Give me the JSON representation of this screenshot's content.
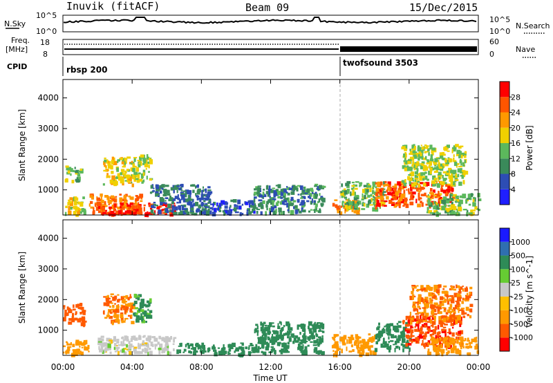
{
  "header": {
    "station": "Inuvik (fitACF)",
    "beam": "Beam 09",
    "date": "15/Dec/2015"
  },
  "top_panels": {
    "nsky_label": "N.Sky",
    "nsky_ticks": [
      "10^5",
      "10^0"
    ],
    "nsearch_label": "N.Search",
    "nsearch_ticks": [
      "10^5",
      "10^0"
    ],
    "freq_label": "Freq.",
    "freq_unit": "[MHz]",
    "freq_ticks": [
      "18",
      "8"
    ],
    "nave_label": "Nave",
    "nave_ticks": [
      "60",
      "0"
    ],
    "cpid_label": "CPID",
    "cpid_segments": [
      {
        "name": "rbsp 200",
        "start_hour": 0
      },
      {
        "name": "twofsound 3503",
        "start_hour": 16
      }
    ]
  },
  "x_axis": {
    "label": "Time UT",
    "ticks": [
      "00:00",
      "04:00",
      "08:00",
      "12:00",
      "16:00",
      "20:00",
      "00:00"
    ]
  },
  "colors": {
    "power": [
      "#1f1fff",
      "#2d4db4",
      "#3a8a5a",
      "#5cb85c",
      "#f0d000",
      "#ff9900",
      "#ff5500",
      "#ff0000"
    ],
    "velocity": [
      "#1a1aff",
      "#2f6fb0",
      "#2e8b57",
      "#66cc33",
      "#c8c8c8",
      "#ffc000",
      "#ff9900",
      "#ff5a00",
      "#ff0000"
    ]
  },
  "chart_data": [
    {
      "type": "heatmap",
      "title": "",
      "xlabel": "Time UT",
      "ylabel": "Slant Range [km]",
      "xlim": [
        0,
        24
      ],
      "ylim": [
        180,
        4600
      ],
      "yticks": [
        "1000",
        "2000",
        "3000",
        "4000"
      ],
      "colorbar": {
        "label": "Power [dB]",
        "ticks": [
          "4",
          "8",
          "12",
          "16",
          "20",
          "24",
          "28"
        ],
        "range": [
          0,
          32
        ]
      },
      "regions": [
        {
          "t0": 0.0,
          "t1": 1.2,
          "r0": 200,
          "r1": 800,
          "value": 18
        },
        {
          "t0": 0.1,
          "t1": 1.0,
          "r0": 1300,
          "r1": 1800,
          "value": 14
        },
        {
          "t0": 1.5,
          "t1": 4.5,
          "r0": 250,
          "r1": 900,
          "value": 24
        },
        {
          "t0": 2.0,
          "t1": 6.5,
          "r0": 250,
          "r1": 600,
          "value": 28
        },
        {
          "t0": 2.3,
          "t1": 4.0,
          "r0": 1200,
          "r1": 2100,
          "value": 18
        },
        {
          "t0": 4.0,
          "t1": 5.0,
          "r0": 1300,
          "r1": 2200,
          "value": 16
        },
        {
          "t0": 5.0,
          "t1": 8.5,
          "r0": 250,
          "r1": 1200,
          "value": 8
        },
        {
          "t0": 8.5,
          "t1": 11.0,
          "r0": 250,
          "r1": 700,
          "value": 6
        },
        {
          "t0": 11.0,
          "t1": 15.0,
          "r0": 300,
          "r1": 1200,
          "value": 10
        },
        {
          "t0": 15.5,
          "t1": 17.0,
          "r0": 250,
          "r1": 700,
          "value": 24
        },
        {
          "t0": 16.0,
          "t1": 18.5,
          "r0": 400,
          "r1": 1300,
          "value": 14
        },
        {
          "t0": 18.0,
          "t1": 22.5,
          "r0": 500,
          "r1": 1300,
          "value": 26
        },
        {
          "t0": 19.5,
          "t1": 23.2,
          "r0": 1200,
          "r1": 2500,
          "value": 16
        },
        {
          "t0": 21.0,
          "t1": 24.0,
          "r0": 250,
          "r1": 900,
          "value": 14
        }
      ]
    },
    {
      "type": "heatmap",
      "title": "",
      "xlabel": "Time UT",
      "ylabel": "Slant Range [km]",
      "xlim": [
        0,
        24
      ],
      "ylim": [
        180,
        4600
      ],
      "yticks": [
        "1000",
        "2000",
        "3000",
        "4000"
      ],
      "colorbar": {
        "label": "Velocity [m s^-1]",
        "ticks": [
          "1000",
          "500",
          "100",
          "25",
          "-25",
          "-100",
          "-500",
          "-1000"
        ],
        "range": [
          -1200,
          1200
        ]
      },
      "regions": [
        {
          "t0": 0.0,
          "t1": 1.2,
          "r0": 1200,
          "r1": 1900,
          "value": -500
        },
        {
          "t0": 0.0,
          "t1": 1.5,
          "r0": 250,
          "r1": 700,
          "value": -100
        },
        {
          "t0": 2.3,
          "t1": 4.0,
          "r0": 1300,
          "r1": 2200,
          "value": -300
        },
        {
          "t0": 4.0,
          "t1": 5.0,
          "r0": 1300,
          "r1": 2200,
          "value": 80
        },
        {
          "t0": 2.0,
          "t1": 6.5,
          "r0": 300,
          "r1": 850,
          "value": 0
        },
        {
          "t0": 6.5,
          "t1": 11.0,
          "r0": 250,
          "r1": 600,
          "value": 100
        },
        {
          "t0": 11.0,
          "t1": 15.0,
          "r0": 300,
          "r1": 1300,
          "value": 150
        },
        {
          "t0": 15.5,
          "t1": 18.0,
          "r0": 250,
          "r1": 900,
          "value": -100
        },
        {
          "t0": 18.0,
          "t1": 20.0,
          "r0": 400,
          "r1": 1300,
          "value": 200
        },
        {
          "t0": 19.5,
          "t1": 23.0,
          "r0": 500,
          "r1": 1500,
          "value": -700
        },
        {
          "t0": 20.0,
          "t1": 23.5,
          "r0": 1300,
          "r1": 2500,
          "value": -300
        },
        {
          "t0": 21.0,
          "t1": 24.0,
          "r0": 250,
          "r1": 800,
          "value": -100
        }
      ]
    }
  ]
}
